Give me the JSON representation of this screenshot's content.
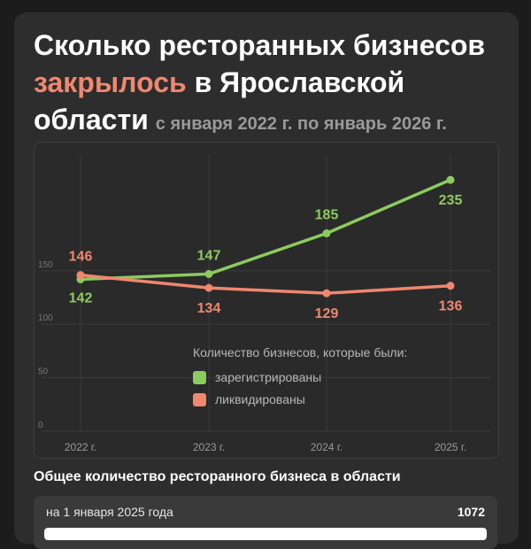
{
  "header": {
    "title_part1": "Сколько ресторанных бизнесов",
    "title_accent": "закрылось",
    "title_part2": "в Ярославской области",
    "subtitle": "с января 2022 г. по январь 2026 г."
  },
  "legend": {
    "title": "Количество бизнесов, которые были:",
    "registered": "зарегистрированы",
    "liquidated": "ликвидированы"
  },
  "colors": {
    "registered": "#8ccb5e",
    "liquidated": "#f0876f",
    "accent": "#f0876f"
  },
  "chart_data": {
    "type": "line",
    "categories": [
      "2022 г.",
      "2023 г.",
      "2024 г.",
      "2025 г."
    ],
    "series": [
      {
        "name": "зарегистрированы",
        "key": "registered",
        "values": [
          142,
          147,
          185,
          235
        ]
      },
      {
        "name": "ликвидированы",
        "key": "liquidated",
        "values": [
          146,
          134,
          129,
          136
        ]
      }
    ],
    "yticks": [
      0,
      50,
      100,
      150
    ],
    "ylim": [
      0,
      250
    ],
    "grid": true,
    "legend_position": "bottom-center"
  },
  "summary": {
    "section_title": "Общее количество ресторанного бизнеса в области",
    "label": "на 1 января 2025 года",
    "value": "1072",
    "bar_fraction": 1.0
  }
}
